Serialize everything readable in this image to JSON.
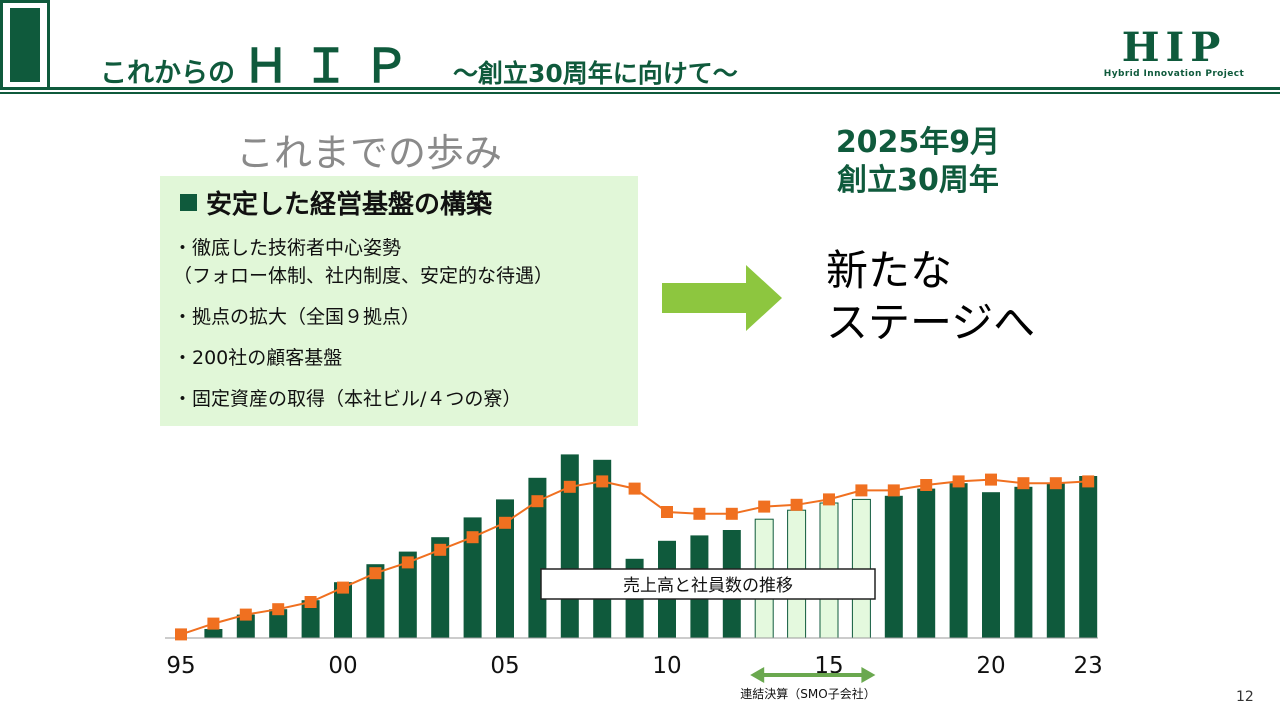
{
  "header": {
    "title_prefix": "これからの",
    "title_main": "ＨＩＰ",
    "title_sub": "～創立30周年に向けて～",
    "logo_main": "HIP",
    "logo_sub": "Hybrid Innovation Project",
    "accent_color": "#0f5a3c"
  },
  "history": {
    "heading": "これまでの歩み",
    "panel_heading": "安定した経営基盤の構築",
    "bullets": [
      "・徹底した技術者中心姿勢",
      "（フォロー体制、社内制度、安定的な待遇）",
      "・拠点の拡大（全国９拠点）",
      "・200社の顧客基盤",
      "・固定資産の取得（本社ビル/４つの寮）"
    ],
    "panel_color": "#e1f7d8"
  },
  "anniversary": {
    "line1": "2025年9月",
    "line2": "創立30周年"
  },
  "new_stage": {
    "line1": "新たな",
    "line2": "ステージへ"
  },
  "chart_data": {
    "type": "bar",
    "title": "売上高と社員数の推移",
    "x": [
      1995,
      1996,
      1997,
      1998,
      1999,
      2000,
      2001,
      2002,
      2003,
      2004,
      2005,
      2006,
      2007,
      2008,
      2009,
      2010,
      2011,
      2012,
      2013,
      2014,
      2015,
      2016,
      2017,
      2018,
      2019,
      2020,
      2021,
      2022,
      2023
    ],
    "xtick_labels": [
      "95",
      "00",
      "05",
      "10",
      "15",
      "20",
      "23"
    ],
    "xtick_years": [
      1995,
      2000,
      2005,
      2010,
      2015,
      2020,
      2023
    ],
    "series": [
      {
        "kind": "bar",
        "values": [
          0,
          5,
          13,
          16,
          21,
          31,
          41,
          48,
          56,
          67,
          77,
          89,
          102,
          99,
          44,
          54,
          57,
          60,
          66,
          71,
          75,
          77,
          79,
          83,
          86,
          81,
          84,
          86,
          90
        ],
        "highlight_years": [
          2013,
          2014,
          2015,
          2016
        ],
        "color": "#0f5a3c",
        "highlight_color": "#e4f9de"
      },
      {
        "kind": "line",
        "values": [
          2,
          8,
          13,
          16,
          20,
          28,
          36,
          42,
          49,
          56,
          64,
          76,
          84,
          87,
          83,
          70,
          69,
          69,
          73,
          74,
          77,
          82,
          82,
          85,
          87,
          88,
          86,
          86,
          87
        ],
        "color": "#f07020",
        "marker": "square"
      }
    ],
    "ylim": [
      0,
      100
    ],
    "consolidated_label": "連結決算（SMO子会社）",
    "consolidated_range": [
      2013,
      2016
    ],
    "bracket_color": "#6aa84f"
  },
  "page": {
    "number": "12"
  }
}
